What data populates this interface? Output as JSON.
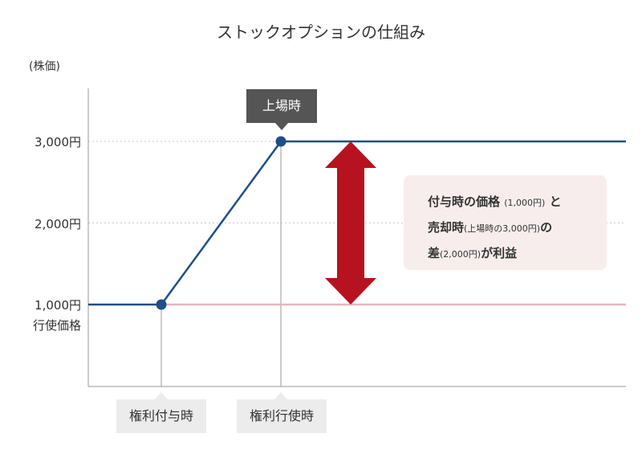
{
  "title": "ストックオプションの仕組み",
  "y_unit": "(株価)",
  "chart_data": {
    "type": "line",
    "ylabel": "(株価)",
    "y_ticks": [
      {
        "value": 3000,
        "label": "3,000円"
      },
      {
        "value": 2000,
        "label": "2,000円"
      },
      {
        "value": 1000,
        "label": "1,000円",
        "sublabel": "行使価格"
      }
    ],
    "ylim": [
      0,
      3800
    ],
    "x_events": [
      {
        "key": "grant",
        "label": "権利付与時"
      },
      {
        "key": "exercise",
        "label": "権利行使時"
      }
    ],
    "series": [
      {
        "type": "stock-price",
        "color": "#1f4e89",
        "points": [
          {
            "x": "start",
            "y": 1000
          },
          {
            "x": "grant",
            "y": 1000
          },
          {
            "x": "exercise",
            "y": 3000
          },
          {
            "x": "end",
            "y": 3000
          }
        ]
      },
      {
        "type": "exercise-price",
        "color": "#e8b4bf",
        "points": [
          {
            "x": "grant",
            "y": 1000
          },
          {
            "x": "end",
            "y": 1000
          }
        ]
      }
    ],
    "grid": {
      "dotted_at": [
        3000,
        2000
      ]
    },
    "profit_range": [
      1000,
      3000
    ],
    "profit_arrow_color": "#b7121f"
  },
  "marker": {
    "label": "上場時"
  },
  "note": {
    "line1_bold": "付与時の価格",
    "line1_small": "(1,000円)",
    "line1_end": "と",
    "line2_bold": "売却時",
    "line2_small": "(上場時の3,000円)",
    "line2_end": "の",
    "line3_bold": "差",
    "line3_small": "(2,000円)",
    "line3_end": "が利益"
  }
}
